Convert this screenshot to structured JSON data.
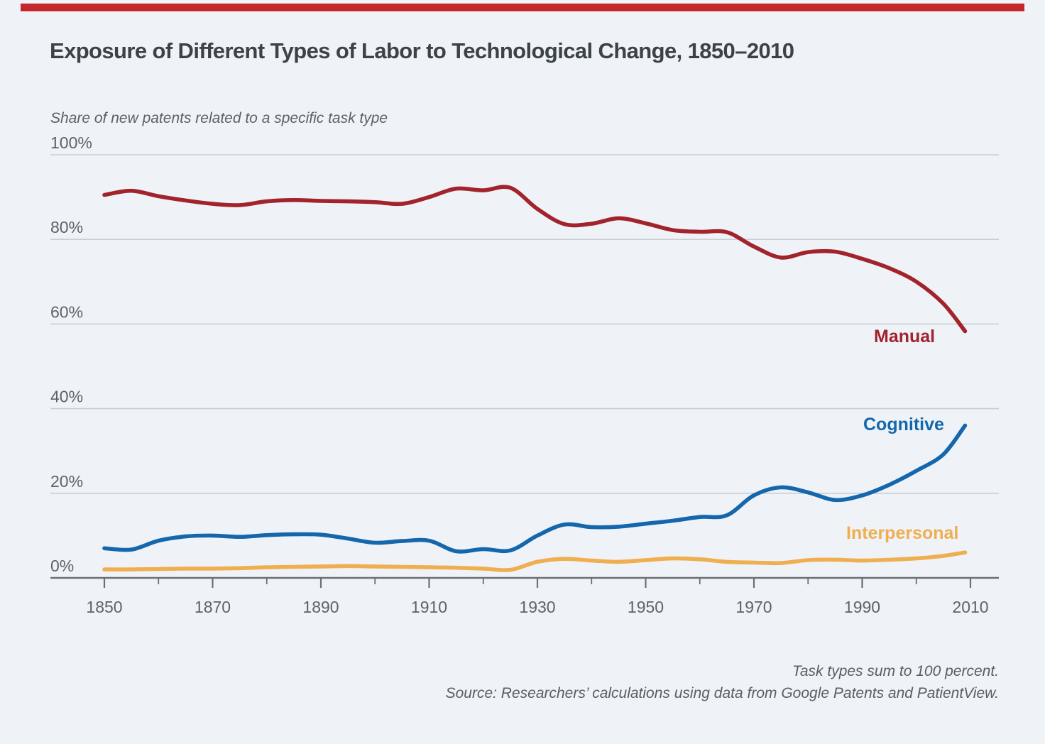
{
  "accent_color": "#C4262E",
  "title": "Exposure of Different Types of Labor to Technological Change, 1850–2010",
  "subtitle": "Share of new patents related to a specific task type",
  "footer": {
    "note": "Task types sum to 100 percent.",
    "source": "Source: Researchers’ calculations using data from Google Patents and PatientView."
  },
  "chart_data": {
    "type": "line",
    "title": "Exposure of Different Types of Labor to Technological Change, 1850–2010",
    "ylabel": "Share of new patents related to a specific task type",
    "xlabel": "",
    "ylim": [
      0,
      100
    ],
    "y_ticks": [
      0,
      20,
      40,
      60,
      80,
      100
    ],
    "y_tick_suffix": "%",
    "x_major_ticks": [
      1850,
      1870,
      1890,
      1910,
      1930,
      1950,
      1970,
      1990,
      2010
    ],
    "x_minor_ticks": [
      1860,
      1880,
      1900,
      1920,
      1940,
      1960,
      1980,
      2000
    ],
    "grid": true,
    "legend_position": "inline-right",
    "x": [
      1850,
      1855,
      1860,
      1865,
      1870,
      1875,
      1880,
      1885,
      1890,
      1895,
      1900,
      1905,
      1910,
      1915,
      1920,
      1925,
      1930,
      1935,
      1940,
      1945,
      1950,
      1955,
      1960,
      1965,
      1970,
      1975,
      1980,
      1985,
      1990,
      1995,
      2000,
      2005,
      2009
    ],
    "series": [
      {
        "name": "Manual",
        "color": "#A2232C",
        "values": [
          90.5,
          91.5,
          90.2,
          89.2,
          88.4,
          88.1,
          89.0,
          89.3,
          89.1,
          89.0,
          88.8,
          88.4,
          90.0,
          92.0,
          91.6,
          92.2,
          87.2,
          83.6,
          83.7,
          85.0,
          83.8,
          82.2,
          81.8,
          81.7,
          78.3,
          75.7,
          77.0,
          77.1,
          75.4,
          73.2,
          70.0,
          64.8,
          58.3
        ]
      },
      {
        "name": "Cognitive",
        "color": "#1467AC",
        "values": [
          7.0,
          6.7,
          8.8,
          9.8,
          10.0,
          9.7,
          10.1,
          10.3,
          10.2,
          9.3,
          8.3,
          8.7,
          8.8,
          6.3,
          6.8,
          6.5,
          10.0,
          12.6,
          12.0,
          12.1,
          12.8,
          13.5,
          14.4,
          14.8,
          19.5,
          21.4,
          20.2,
          18.4,
          19.5,
          22.0,
          25.3,
          29.2,
          36.0
        ]
      },
      {
        "name": "Interpersonal",
        "color": "#EFAF51",
        "values": [
          2.0,
          2.0,
          2.1,
          2.2,
          2.2,
          2.3,
          2.5,
          2.6,
          2.7,
          2.8,
          2.7,
          2.6,
          2.5,
          2.4,
          2.2,
          1.9,
          3.8,
          4.5,
          4.1,
          3.8,
          4.2,
          4.6,
          4.4,
          3.8,
          3.6,
          3.5,
          4.2,
          4.3,
          4.1,
          4.3,
          4.6,
          5.2,
          6.0
        ]
      }
    ]
  }
}
